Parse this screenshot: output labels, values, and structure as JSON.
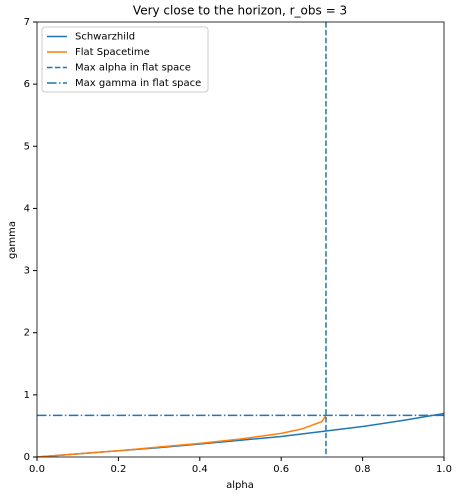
{
  "chart_data": {
    "type": "line",
    "title": "Very close to the horizon, r_obs = 3",
    "xlabel": "alpha",
    "ylabel": "gamma",
    "xlim": [
      0,
      1
    ],
    "ylim": [
      0,
      7
    ],
    "xticks": [
      {
        "value": 0,
        "label": "0.0"
      },
      {
        "value": 0.2,
        "label": "0.2"
      },
      {
        "value": 0.4,
        "label": "0.4"
      },
      {
        "value": 0.6,
        "label": "0.6"
      },
      {
        "value": 0.8,
        "label": "0.8"
      },
      {
        "value": 1,
        "label": "1.0"
      }
    ],
    "yticks": [
      0,
      1,
      2,
      3,
      4,
      5,
      6,
      7
    ],
    "legend": "upper-left",
    "series": [
      {
        "name": "Schwarzhild",
        "color": "#1f77b4",
        "linestyle": "solid",
        "x": [
          0,
          0.1,
          0.2,
          0.3,
          0.4,
          0.5,
          0.6,
          0.7,
          0.8,
          0.9,
          1.0
        ],
        "values": [
          0,
          0.05,
          0.1,
          0.15,
          0.21,
          0.27,
          0.33,
          0.41,
          0.49,
          0.59,
          0.7
        ]
      },
      {
        "name": "Flat Spacetime",
        "color": "#ff7f0e",
        "linestyle": "solid",
        "x": [
          0,
          0.1,
          0.2,
          0.3,
          0.4,
          0.5,
          0.6,
          0.65,
          0.7,
          0.71
        ],
        "values": [
          0,
          0.05,
          0.1,
          0.16,
          0.22,
          0.29,
          0.38,
          0.45,
          0.57,
          0.67
        ]
      },
      {
        "name": "Max alpha in flat space",
        "color": "#1f77b4",
        "linestyle": "dashed",
        "orientation": "vertical",
        "value": 0.71
      },
      {
        "name": "Max gamma in flat space",
        "color": "#1f77b4",
        "linestyle": "dashdot",
        "orientation": "horizontal",
        "value": 0.67
      }
    ]
  }
}
